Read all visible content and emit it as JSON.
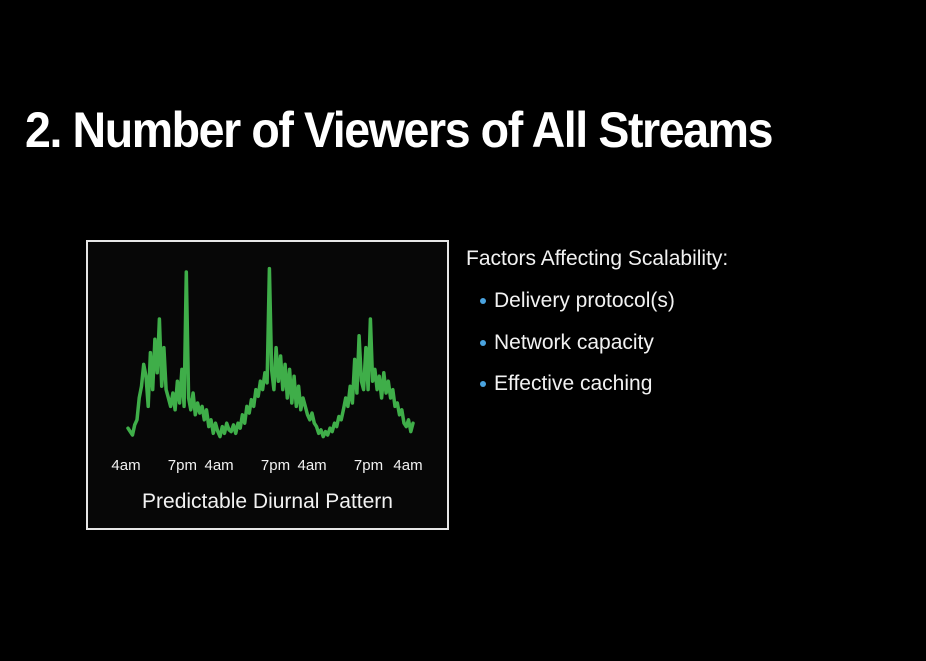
{
  "slide": {
    "title": "2. Number of Viewers of All Streams",
    "accent_color": "#4aa3df",
    "background_color": "#000000"
  },
  "figure": {
    "caption": "Predictable Diurnal Pattern",
    "chart_data": {
      "type": "line",
      "title": "",
      "xlabel": "",
      "ylabel": "",
      "x_tick_labels": [
        "4am",
        "7pm",
        "4am",
        "7pm",
        "4am",
        "7pm",
        "4am"
      ],
      "x_tick_fractions": [
        0.0,
        0.2,
        0.33,
        0.53,
        0.66,
        0.86,
        1.0
      ],
      "y_axis_shown": false,
      "grid": false,
      "line_color": "#3fae49",
      "series": [
        {
          "name": "",
          "values": [
            0.07,
            0.05,
            0.03,
            0.09,
            0.12,
            0.25,
            0.32,
            0.45,
            0.38,
            0.2,
            0.52,
            0.3,
            0.6,
            0.4,
            0.72,
            0.32,
            0.55,
            0.3,
            0.25,
            0.2,
            0.28,
            0.18,
            0.35,
            0.22,
            0.42,
            0.2,
            1.0,
            0.25,
            0.18,
            0.28,
            0.15,
            0.22,
            0.16,
            0.2,
            0.12,
            0.18,
            0.08,
            0.12,
            0.04,
            0.1,
            0.05,
            0.02,
            0.08,
            0.04,
            0.1,
            0.06,
            0.05,
            0.09,
            0.04,
            0.1,
            0.07,
            0.15,
            0.1,
            0.2,
            0.16,
            0.24,
            0.2,
            0.3,
            0.26,
            0.35,
            0.3,
            0.4,
            0.34,
            1.02,
            0.42,
            0.3,
            0.55,
            0.35,
            0.5,
            0.3,
            0.45,
            0.25,
            0.42,
            0.22,
            0.38,
            0.2,
            0.32,
            0.18,
            0.25,
            0.2,
            0.15,
            0.12,
            0.16,
            0.1,
            0.08,
            0.04,
            0.06,
            0.02,
            0.05,
            0.03,
            0.07,
            0.05,
            0.1,
            0.08,
            0.14,
            0.12,
            0.18,
            0.25,
            0.2,
            0.32,
            0.22,
            0.48,
            0.28,
            0.62,
            0.35,
            0.3,
            0.55,
            0.3,
            0.72,
            0.35,
            0.42,
            0.3,
            0.38,
            0.25,
            0.4,
            0.28,
            0.35,
            0.25,
            0.3,
            0.2,
            0.22,
            0.15,
            0.18,
            0.1,
            0.08,
            0.12,
            0.05,
            0.1
          ]
        }
      ]
    }
  },
  "factors": {
    "heading": "Factors Affecting Scalability:",
    "items": [
      {
        "label": "Delivery protocol(s)"
      },
      {
        "label": "Network capacity"
      },
      {
        "label": "Effective caching"
      }
    ]
  }
}
